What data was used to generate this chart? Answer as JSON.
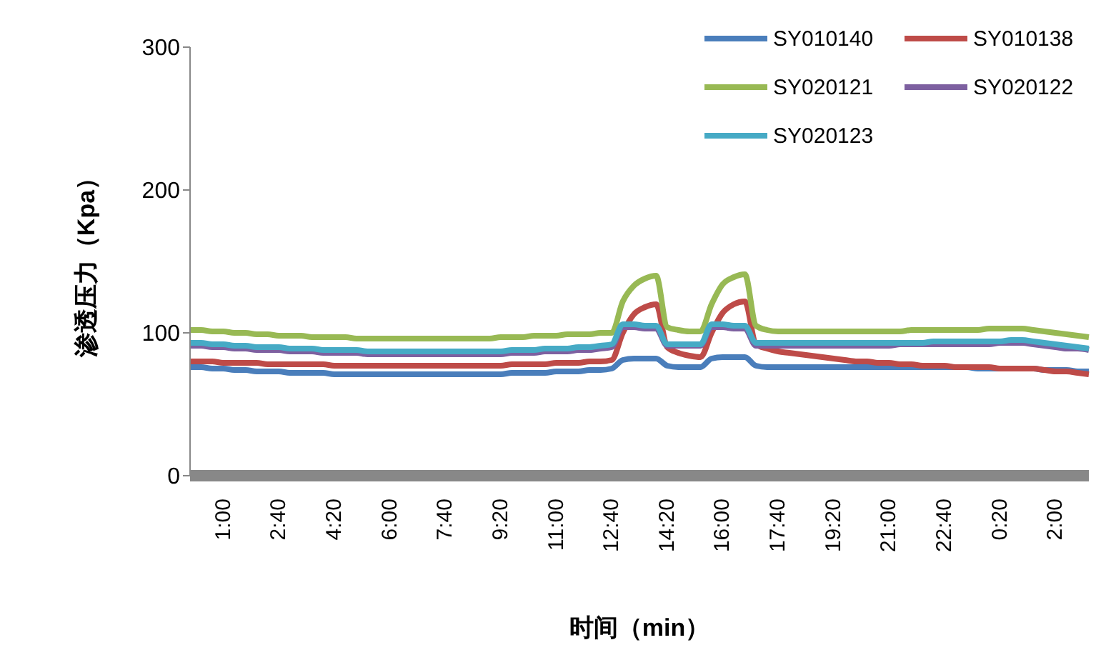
{
  "chart_data": {
    "type": "line",
    "xlabel": "时间（min）",
    "ylabel": "渗透压力（Kpa）",
    "categories": [
      null,
      null,
      null,
      "1:00",
      null,
      null,
      null,
      null,
      "2:40",
      null,
      null,
      null,
      null,
      "4:20",
      null,
      null,
      null,
      null,
      "6:00",
      null,
      null,
      null,
      null,
      "7:40",
      null,
      null,
      null,
      null,
      "9:20",
      null,
      null,
      null,
      null,
      "11:00",
      null,
      null,
      null,
      null,
      "12:40",
      null,
      null,
      null,
      null,
      "14:20",
      null,
      null,
      null,
      null,
      "16:00",
      null,
      null,
      null,
      null,
      "17:40",
      null,
      null,
      null,
      null,
      "19:20",
      null,
      null,
      null,
      null,
      "21:00",
      null,
      null,
      null,
      null,
      "22:40",
      null,
      null,
      null,
      null,
      "0:20",
      null,
      null,
      null,
      null,
      "2:00",
      null,
      null,
      null
    ],
    "series": [
      {
        "name": "SY010140",
        "color": "#4a7ebb",
        "values": [
          76,
          76,
          75,
          75,
          74,
          74,
          73,
          73,
          73,
          72,
          72,
          72,
          72,
          71,
          71,
          71,
          71,
          71,
          71,
          71,
          71,
          71,
          71,
          71,
          71,
          71,
          71,
          71,
          71,
          72,
          72,
          72,
          72,
          73,
          73,
          73,
          74,
          74,
          75,
          81,
          82,
          82,
          82,
          77,
          76,
          76,
          76,
          82,
          83,
          83,
          83,
          77,
          76,
          76,
          76,
          76,
          76,
          76,
          76,
          76,
          76,
          76,
          76,
          76,
          76,
          76,
          76,
          76,
          76,
          76,
          76,
          75,
          75,
          75,
          75,
          75,
          75,
          74,
          74,
          74,
          73,
          73
        ]
      },
      {
        "name": "SY010138",
        "color": "#be4b48",
        "values": [
          80,
          80,
          80,
          79,
          79,
          79,
          79,
          78,
          78,
          78,
          78,
          78,
          78,
          77,
          77,
          77,
          77,
          77,
          77,
          77,
          77,
          77,
          77,
          77,
          77,
          77,
          77,
          77,
          77,
          78,
          78,
          78,
          78,
          79,
          79,
          79,
          80,
          80,
          81,
          100,
          113,
          118,
          120,
          90,
          86,
          84,
          83,
          100,
          114,
          120,
          122,
          92,
          89,
          87,
          86,
          85,
          84,
          83,
          82,
          81,
          80,
          80,
          79,
          79,
          78,
          78,
          77,
          77,
          77,
          76,
          76,
          76,
          76,
          75,
          75,
          75,
          75,
          74,
          73,
          73,
          72,
          71
        ]
      },
      {
        "name": "SY020121",
        "color": "#98b954",
        "values": [
          102,
          102,
          101,
          101,
          100,
          100,
          99,
          99,
          98,
          98,
          98,
          97,
          97,
          97,
          97,
          96,
          96,
          96,
          96,
          96,
          96,
          96,
          96,
          96,
          96,
          96,
          96,
          96,
          97,
          97,
          97,
          98,
          98,
          98,
          99,
          99,
          99,
          100,
          100,
          122,
          133,
          138,
          140,
          104,
          102,
          101,
          101,
          120,
          134,
          139,
          141,
          105,
          102,
          101,
          101,
          101,
          101,
          101,
          101,
          101,
          101,
          101,
          101,
          101,
          101,
          102,
          102,
          102,
          102,
          102,
          102,
          102,
          103,
          103,
          103,
          103,
          102,
          101,
          100,
          99,
          98,
          97
        ]
      },
      {
        "name": "SY020122",
        "color": "#7d60a0",
        "values": [
          91,
          91,
          90,
          90,
          89,
          89,
          88,
          88,
          88,
          87,
          87,
          87,
          86,
          86,
          86,
          86,
          85,
          85,
          85,
          85,
          85,
          85,
          85,
          85,
          85,
          85,
          85,
          85,
          85,
          86,
          86,
          86,
          87,
          87,
          87,
          88,
          88,
          89,
          90,
          104,
          104,
          103,
          103,
          91,
          91,
          91,
          91,
          104,
          104,
          103,
          103,
          91,
          91,
          91,
          91,
          91,
          91,
          91,
          91,
          91,
          91,
          91,
          91,
          91,
          92,
          92,
          92,
          92,
          92,
          92,
          92,
          92,
          92,
          93,
          93,
          93,
          92,
          91,
          90,
          89,
          89,
          88
        ]
      },
      {
        "name": "SY020123",
        "color": "#46aac5",
        "values": [
          93,
          93,
          92,
          92,
          91,
          91,
          90,
          90,
          90,
          89,
          89,
          89,
          88,
          88,
          88,
          88,
          87,
          87,
          87,
          87,
          87,
          87,
          87,
          87,
          87,
          87,
          87,
          87,
          87,
          88,
          88,
          88,
          89,
          89,
          89,
          90,
          90,
          91,
          92,
          106,
          106,
          105,
          105,
          92,
          92,
          92,
          92,
          106,
          106,
          105,
          105,
          93,
          93,
          93,
          93,
          93,
          93,
          93,
          93,
          93,
          93,
          93,
          93,
          93,
          93,
          93,
          93,
          94,
          94,
          94,
          94,
          94,
          94,
          94,
          95,
          95,
          94,
          93,
          92,
          91,
          90,
          89
        ]
      }
    ],
    "ylim": [
      0,
      300
    ],
    "yticks": [
      0,
      100,
      200,
      300
    ],
    "legend": "top right",
    "grid": false,
    "marker": "none",
    "line_style": "solid"
  }
}
